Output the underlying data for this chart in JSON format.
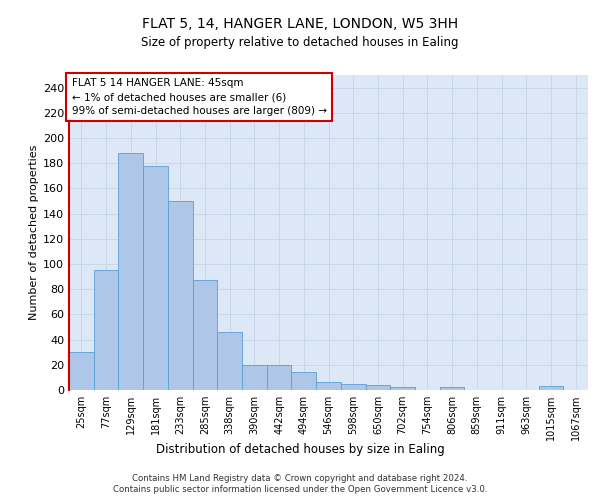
{
  "title1": "FLAT 5, 14, HANGER LANE, LONDON, W5 3HH",
  "title2": "Size of property relative to detached houses in Ealing",
  "xlabel": "Distribution of detached houses by size in Ealing",
  "ylabel": "Number of detached properties",
  "annotation_lines": [
    "FLAT 5 14 HANGER LANE: 45sqm",
    "← 1% of detached houses are smaller (6)",
    "99% of semi-detached houses are larger (809) →"
  ],
  "bar_labels": [
    "25sqm",
    "77sqm",
    "129sqm",
    "181sqm",
    "233sqm",
    "285sqm",
    "338sqm",
    "390sqm",
    "442sqm",
    "494sqm",
    "546sqm",
    "598sqm",
    "650sqm",
    "702sqm",
    "754sqm",
    "806sqm",
    "859sqm",
    "911sqm",
    "963sqm",
    "1015sqm",
    "1067sqm"
  ],
  "bar_values": [
    30,
    95,
    188,
    178,
    150,
    87,
    46,
    20,
    20,
    14,
    6,
    5,
    4,
    2,
    0,
    2,
    0,
    0,
    0,
    3,
    0
  ],
  "bar_color": "#aec6e8",
  "bar_edgecolor": "#5a9fd4",
  "annotation_box_color": "#ffffff",
  "annotation_box_edgecolor": "#cc0000",
  "ylim": [
    0,
    250
  ],
  "yticks": [
    0,
    20,
    40,
    60,
    80,
    100,
    120,
    140,
    160,
    180,
    200,
    220,
    240
  ],
  "grid_color": "#c8d8e8",
  "background_color": "#dce8f5",
  "fig_background": "#ffffff",
  "vline_color": "#cc0000",
  "footer_line1": "Contains HM Land Registry data © Crown copyright and database right 2024.",
  "footer_line2": "Contains public sector information licensed under the Open Government Licence v3.0."
}
